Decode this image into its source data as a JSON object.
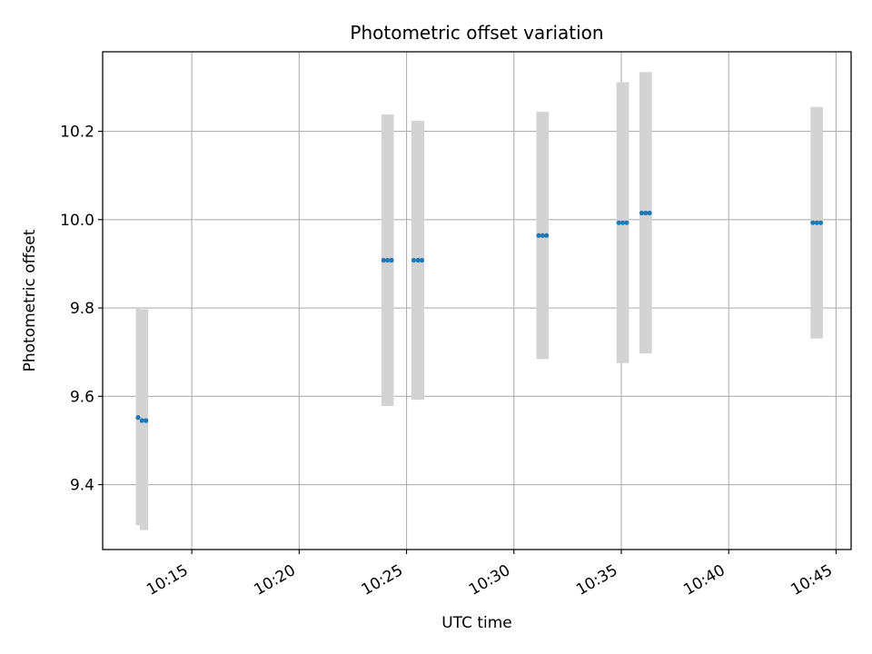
{
  "chart_data": {
    "type": "scatter",
    "title": "Photometric offset variation",
    "xlabel": "UTC time",
    "ylabel": "Photometric offset",
    "x_unit": "time of day (HH:MM)",
    "xlim": [
      "10:10:51",
      "10:45:42"
    ],
    "ylim": [
      9.253,
      10.38
    ],
    "x_ticks": [
      "10:15",
      "10:20",
      "10:25",
      "10:30",
      "10:35",
      "10:40",
      "10:45"
    ],
    "y_ticks": [
      "9.4",
      "9.6",
      "9.8",
      "10.0",
      "10.2"
    ],
    "grid": true,
    "marker_color": "#1f77b4",
    "errorbar_color": "#d3d3d3",
    "points": [
      {
        "x": "10:12:30",
        "y": 9.552,
        "yerr_low": 9.308,
        "yerr_high": 9.8
      },
      {
        "x": "10:12:41",
        "y": 9.545,
        "yerr_low": 9.297,
        "yerr_high": 9.797
      },
      {
        "x": "10:12:52",
        "y": 9.545,
        "yerr_low": 9.297,
        "yerr_high": 9.797
      },
      {
        "x": "10:23:56",
        "y": 9.908,
        "yerr_low": 9.578,
        "yerr_high": 10.238
      },
      {
        "x": "10:24:07",
        "y": 9.908,
        "yerr_low": 9.578,
        "yerr_high": 10.238
      },
      {
        "x": "10:24:18",
        "y": 9.908,
        "yerr_low": 9.578,
        "yerr_high": 10.238
      },
      {
        "x": "10:25:20",
        "y": 9.908,
        "yerr_low": 9.592,
        "yerr_high": 10.224
      },
      {
        "x": "10:25:32",
        "y": 9.908,
        "yerr_low": 9.592,
        "yerr_high": 10.224
      },
      {
        "x": "10:25:43",
        "y": 9.908,
        "yerr_low": 9.592,
        "yerr_high": 10.224
      },
      {
        "x": "10:31:09",
        "y": 9.964,
        "yerr_low": 9.684,
        "yerr_high": 10.244
      },
      {
        "x": "10:31:20",
        "y": 9.964,
        "yerr_low": 9.684,
        "yerr_high": 10.244
      },
      {
        "x": "10:31:31",
        "y": 9.964,
        "yerr_low": 9.684,
        "yerr_high": 10.244
      },
      {
        "x": "10:34:53",
        "y": 9.993,
        "yerr_low": 9.675,
        "yerr_high": 10.311
      },
      {
        "x": "10:35:04",
        "y": 9.993,
        "yerr_low": 9.675,
        "yerr_high": 10.311
      },
      {
        "x": "10:35:15",
        "y": 9.993,
        "yerr_low": 9.675,
        "yerr_high": 10.311
      },
      {
        "x": "10:35:57",
        "y": 10.015,
        "yerr_low": 9.697,
        "yerr_high": 10.334
      },
      {
        "x": "10:36:08",
        "y": 10.015,
        "yerr_low": 9.697,
        "yerr_high": 10.334
      },
      {
        "x": "10:36:19",
        "y": 10.015,
        "yerr_low": 9.697,
        "yerr_high": 10.334
      },
      {
        "x": "10:43:55",
        "y": 9.993,
        "yerr_low": 9.731,
        "yerr_high": 10.255
      },
      {
        "x": "10:44:06",
        "y": 9.993,
        "yerr_low": 9.731,
        "yerr_high": 10.255
      },
      {
        "x": "10:44:17",
        "y": 9.993,
        "yerr_low": 9.731,
        "yerr_high": 10.255
      }
    ]
  }
}
